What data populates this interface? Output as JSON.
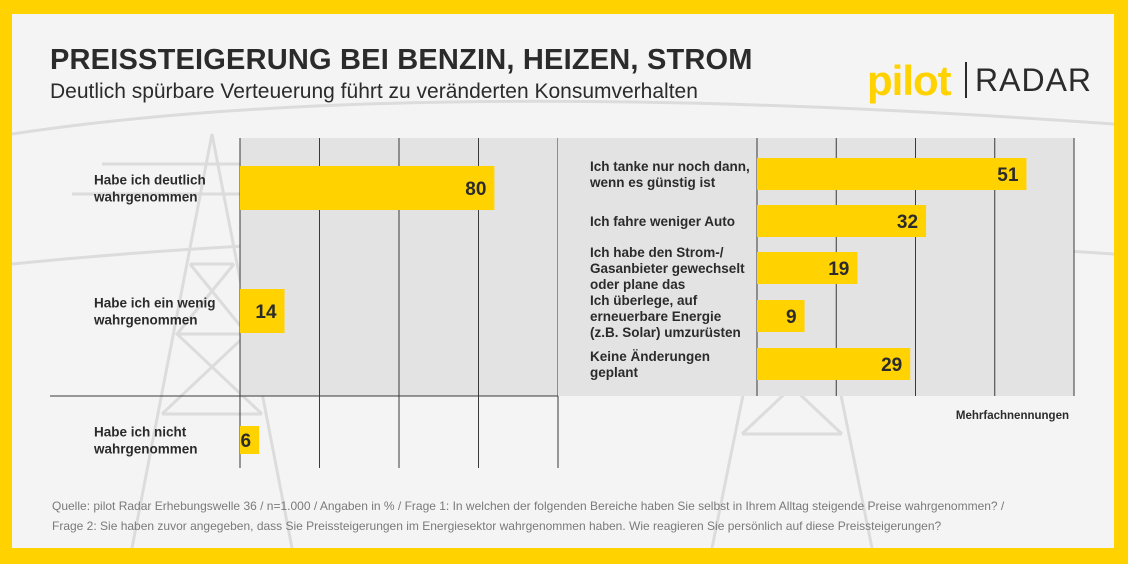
{
  "header": {
    "title": "PREISSTEIGERUNG BEI BENZIN, HEIZEN, STROM",
    "subtitle": "Deutlich spürbare Verteuerung führt zu veränderten Konsumverhalten"
  },
  "logo": {
    "part1": "pilot",
    "part2": "RADAR"
  },
  "colors": {
    "bar": "#FFD200",
    "frame": "#FFD200",
    "text": "#2b2b2b",
    "source_text": "#7a7a7a"
  },
  "chart_data": [
    {
      "type": "bar",
      "orientation": "horizontal",
      "categories": [
        [
          "Habe ich deutlich",
          "wahrgenommen"
        ],
        [
          "Habe ich ein wenig",
          "wahrgenommen"
        ],
        [
          "Habe ich nicht",
          "wahrgenommen"
        ]
      ],
      "values": [
        80,
        14,
        6
      ],
      "xlim": [
        0,
        100
      ],
      "grid": true
    },
    {
      "type": "bar",
      "orientation": "horizontal",
      "categories": [
        [
          "Ich tanke nur noch dann,",
          "wenn es günstig ist"
        ],
        [
          "Ich fahre weniger Auto"
        ],
        [
          "Ich habe den Strom-/",
          "Gasanbieter gewechselt",
          "oder plane das"
        ],
        [
          "Ich überlege, auf",
          "erneuerbare Energie",
          "(z.B. Solar) umzurüsten"
        ],
        [
          "Keine Änderungen",
          "geplant"
        ]
      ],
      "values": [
        51,
        32,
        19,
        9,
        29
      ],
      "xlim": [
        0,
        60
      ],
      "grid": true,
      "note": "Mehrfachnennungen"
    }
  ],
  "footer": {
    "source_line1": "Quelle: pilot Radar Erhebungswelle 36 / n=1.000 / Angaben in % / Frage 1: In welchen der folgenden Bereiche haben Sie selbst in Ihrem Alltag steigende Preise wahrgenommen? /",
    "source_line2": "Frage 2: Sie haben zuvor angegeben, dass Sie Preissteigerungen im Energiesektor wahrgenommen haben. Wie reagieren Sie persönlich auf diese Preissteigerungen?"
  }
}
